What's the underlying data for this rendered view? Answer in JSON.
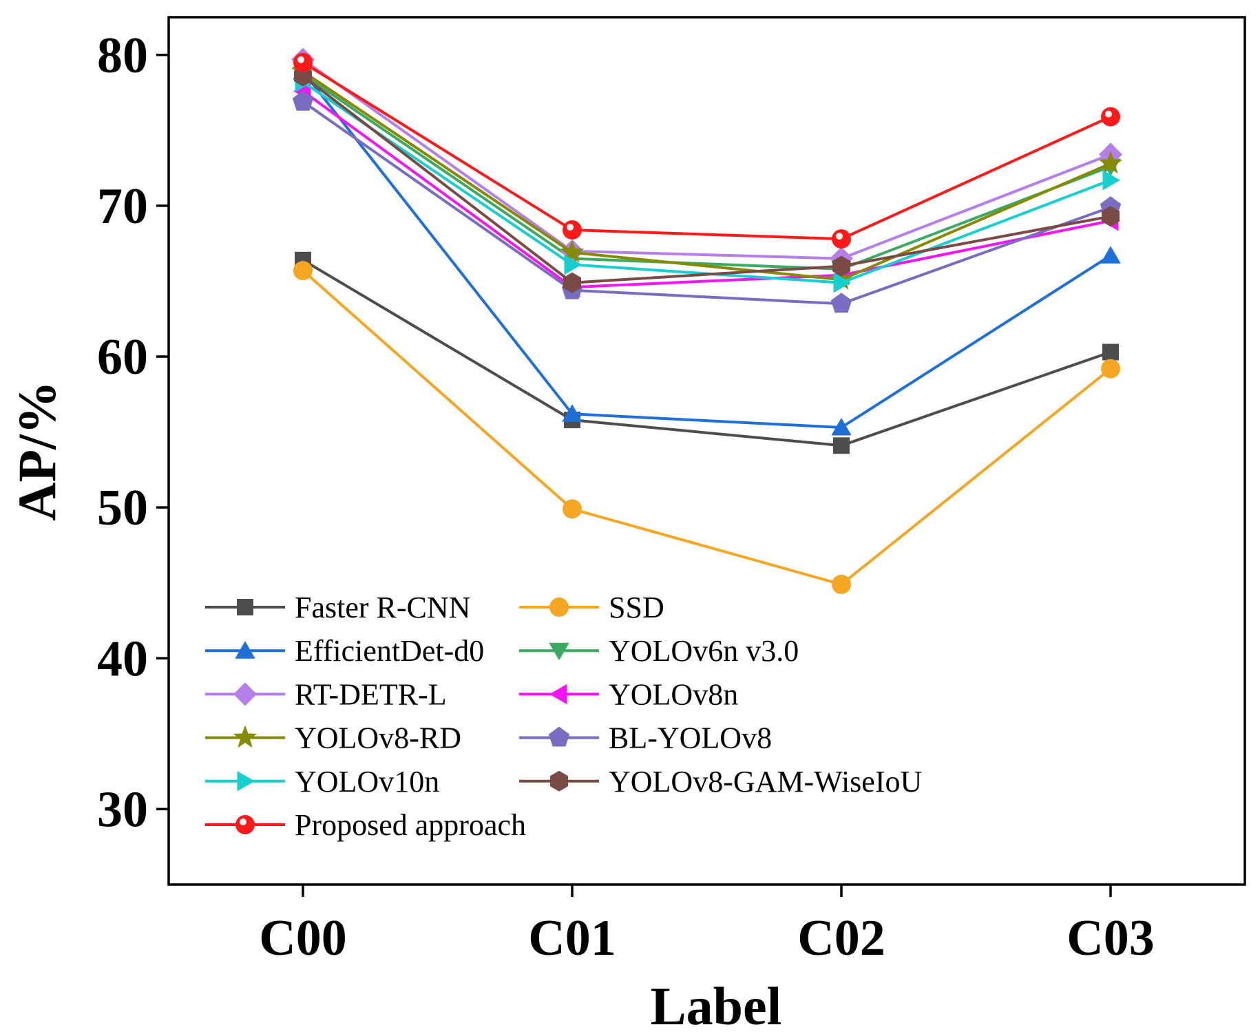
{
  "chart_data": {
    "type": "line",
    "title": "",
    "xlabel": "Label",
    "ylabel": "AP/%",
    "categories": [
      "C00",
      "C01",
      "C02",
      "C03"
    ],
    "ylim": [
      25,
      82.5
    ],
    "yticks": [
      30,
      40,
      50,
      60,
      70,
      80
    ],
    "ytick_labels": [
      "30",
      "40",
      "50",
      "60",
      "70",
      "80"
    ],
    "grid": false,
    "legend_position": "bottom-left",
    "series": [
      {
        "name": "Faster R-CNN",
        "values": [
          66.4,
          55.8,
          54.1,
          60.3
        ],
        "color": "#4d4d4d",
        "marker": "square"
      },
      {
        "name": "SSD",
        "values": [
          65.7,
          49.9,
          44.9,
          59.2
        ],
        "color": "#f5a623",
        "marker": "circle"
      },
      {
        "name": "EfficientDet-d0",
        "values": [
          78.9,
          56.2,
          55.3,
          66.7
        ],
        "color": "#1f6fd8",
        "marker": "triangle-up"
      },
      {
        "name": "YOLOv6n v3.0",
        "values": [
          78.7,
          66.5,
          65.8,
          72.6
        ],
        "color": "#3daa63",
        "marker": "triangle-down"
      },
      {
        "name": "RT-DETR-L",
        "values": [
          79.7,
          67.0,
          66.5,
          73.4
        ],
        "color": "#b57ee8",
        "marker": "diamond"
      },
      {
        "name": "YOLOv8n",
        "values": [
          77.6,
          64.6,
          65.4,
          69.0
        ],
        "color": "#f414f4",
        "marker": "triangle-left"
      },
      {
        "name": "YOLOv8-RD",
        "values": [
          78.9,
          66.9,
          65.1,
          72.8
        ],
        "color": "#868a00",
        "marker": "star"
      },
      {
        "name": "BL-YOLOv8",
        "values": [
          76.9,
          64.4,
          63.5,
          69.9
        ],
        "color": "#7a6cc1",
        "marker": "pentagon"
      },
      {
        "name": "YOLOv10n",
        "values": [
          78.2,
          66.1,
          64.9,
          71.7
        ],
        "color": "#18cfd0",
        "marker": "triangle-right"
      },
      {
        "name": "YOLOv8-GAM-WiseIoU",
        "values": [
          78.6,
          64.9,
          66.0,
          69.3
        ],
        "color": "#7a4a44",
        "marker": "hexagon"
      },
      {
        "name": "Proposed approach",
        "values": [
          79.5,
          68.4,
          67.8,
          75.9
        ],
        "color": "#ff1a1a",
        "marker": "circle-highlight"
      }
    ]
  }
}
